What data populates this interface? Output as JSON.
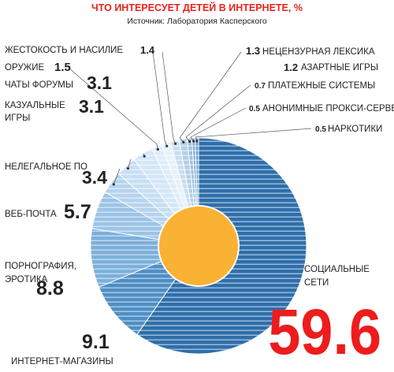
{
  "chart_data": {
    "type": "pie",
    "title": "ЧТО ИНТЕРЕСУЕТ ДЕТЕЙ В ИНТЕРНЕТЕ, %",
    "subtitle": "Источник: Лаборатория Касперского",
    "donut": true,
    "slices": [
      {
        "label": "СОЦИАЛЬНЫЕ СЕТИ",
        "value": 59.6,
        "display": "59.6",
        "color": "#2f6fab"
      },
      {
        "label": "ИНТЕРНЕТ-МАГАЗИНЫ",
        "value": 9.1,
        "display": "9.1",
        "color": "#4f8fc5"
      },
      {
        "label": "ПОРНОГРАФИЯ, ЭРОТИКА",
        "value": 8.8,
        "display": "8.8",
        "color": "#7cb0db"
      },
      {
        "label": "ВЕБ-ПОЧТА",
        "value": 5.7,
        "display": "5.7",
        "color": "#9cc4e6"
      },
      {
        "label": "НЕЛЕГАЛЬНОЕ ПО",
        "value": 3.4,
        "display": "3.4",
        "color": "#b6d4ee"
      },
      {
        "label": "КАЗУАЛЬНЫЕ ИГРЫ",
        "value": 3.1,
        "display": "3.1",
        "color": "#c8dff3"
      },
      {
        "label": "ЧАТЫ ФОРУМЫ",
        "value": 3.1,
        "display": "3.1",
        "color": "#d5e7f7"
      },
      {
        "label": "ОРУЖИЕ",
        "value": 1.5,
        "display": "1.5",
        "color": "#dfecf8"
      },
      {
        "label": "ЖЕСТОКОСТЬ И НАСИЛИЕ",
        "value": 1.4,
        "display": "1.4",
        "color": "#e7f1fa"
      },
      {
        "label": "НЕЦЕНЗУРНАЯ ЛЕКСИКА",
        "value": 1.3,
        "display": "1.3",
        "color": "#c9ddef"
      },
      {
        "label": "АЗАРТНЫЕ ИГРЫ",
        "value": 1.2,
        "display": "1.2",
        "color": "#b3cfe8"
      },
      {
        "label": "ПЛАТЕЖНЫЕ СИСТЕМЫ",
        "value": 0.7,
        "display": "0.7",
        "color": "#9dc0e0"
      },
      {
        "label": "АНОНИМНЫЕ ПРОКСИ-СЕРВЕРЫ",
        "value": 0.5,
        "display": "0.5",
        "color": "#86b1d8"
      },
      {
        "label": "НАРКОТИКИ",
        "value": 0.5,
        "display": "0.5",
        "color": "#6fa2d0"
      }
    ],
    "colors": {
      "title": "#e8231f",
      "big_value": "#ee1c1c",
      "center": "#f9b233",
      "text": "#222222",
      "leader": "#555555"
    }
  }
}
